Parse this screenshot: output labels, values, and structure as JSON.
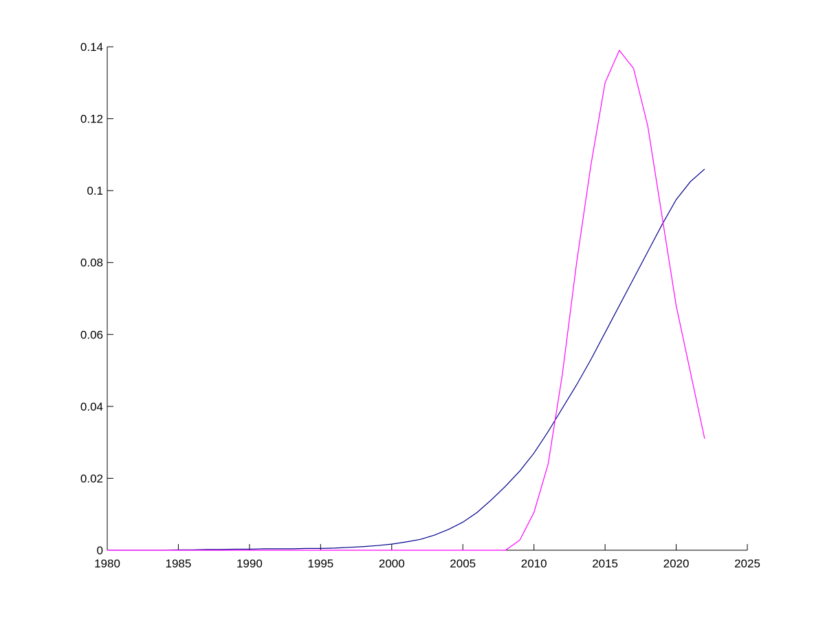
{
  "chart_data": {
    "type": "line",
    "x": [
      1980,
      1981,
      1982,
      1983,
      1984,
      1985,
      1986,
      1987,
      1988,
      1989,
      1990,
      1991,
      1992,
      1993,
      1994,
      1995,
      1996,
      1997,
      1998,
      1999,
      2000,
      2001,
      2002,
      2003,
      2004,
      2005,
      2006,
      2007,
      2008,
      2009,
      2010,
      2011,
      2012,
      2013,
      2014,
      2015,
      2016,
      2017,
      2018,
      2019,
      2020,
      2021,
      2022
    ],
    "series": [
      {
        "color": "#00008b",
        "values": [
          0,
          0,
          0,
          0,
          0,
          0.0001,
          0.0001,
          0.0002,
          0.0002,
          0.0003,
          0.0003,
          0.0004,
          0.0004,
          0.0004,
          0.0005,
          0.0005,
          0.0006,
          0.0008,
          0.001,
          0.0013,
          0.0017,
          0.0023,
          0.003,
          0.0042,
          0.0058,
          0.0078,
          0.0105,
          0.014,
          0.0178,
          0.022,
          0.027,
          0.033,
          0.0395,
          0.046,
          0.053,
          0.0605,
          0.068,
          0.0755,
          0.083,
          0.0905,
          0.0975,
          0.1025,
          0.106
        ]
      },
      {
        "color": "#ff00ff",
        "values": [
          0,
          0,
          0,
          0,
          0,
          0,
          0,
          0,
          0,
          0,
          0,
          0,
          0,
          0,
          0,
          0,
          0,
          0,
          0,
          0,
          0,
          0,
          0,
          0,
          0,
          0,
          0,
          0,
          0,
          0.0028,
          0.0105,
          0.024,
          0.049,
          0.08,
          0.107,
          0.13,
          0.139,
          0.134,
          0.118,
          0.093,
          0.068,
          0.0495,
          0.031
        ]
      }
    ],
    "xlim": [
      1980,
      2025
    ],
    "xticks": [
      1980,
      1985,
      1990,
      1995,
      2000,
      2005,
      2010,
      2015,
      2020,
      2025
    ],
    "ylim": [
      0,
      0.14
    ],
    "yticks": [
      0,
      0.02,
      0.04,
      0.06,
      0.08,
      0.1,
      0.12,
      0.14
    ]
  }
}
